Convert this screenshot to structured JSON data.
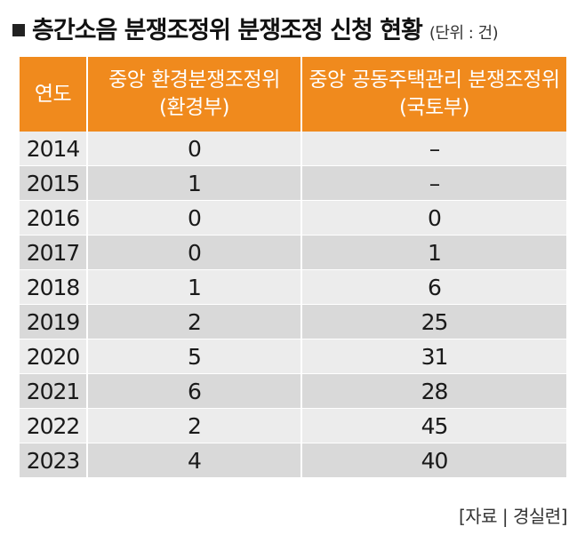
{
  "title": "층간소음 분쟁조정위 분쟁조정 신청 현황",
  "unit": "(단위 : 건)",
  "source": "[자료 | 경실련]",
  "colors": {
    "header_bg": "#f08a1d",
    "header_text": "#ffffff",
    "row_light": "#ececec",
    "row_dark": "#d9d9d9"
  },
  "headers": {
    "year": "연도",
    "env_line1": "중앙 환경분쟁조정위",
    "env_line2": "(환경부)",
    "housing_line1": "중앙 공동주택관리 분쟁조정위",
    "housing_line2": "(국토부)"
  },
  "rows": [
    {
      "year": "2014",
      "env": "0",
      "housing": "–"
    },
    {
      "year": "2015",
      "env": "1",
      "housing": "–"
    },
    {
      "year": "2016",
      "env": "0",
      "housing": "0"
    },
    {
      "year": "2017",
      "env": "0",
      "housing": "1"
    },
    {
      "year": "2018",
      "env": "1",
      "housing": "6"
    },
    {
      "year": "2019",
      "env": "2",
      "housing": "25"
    },
    {
      "year": "2020",
      "env": "5",
      "housing": "31"
    },
    {
      "year": "2021",
      "env": "6",
      "housing": "28"
    },
    {
      "year": "2022",
      "env": "2",
      "housing": "45"
    },
    {
      "year": "2023",
      "env": "4",
      "housing": "40"
    }
  ],
  "chart_data": {
    "type": "table",
    "title": "층간소음 분쟁조정위 분쟁조정 신청 현황",
    "unit": "(단위 : 건)",
    "columns": [
      "연도",
      "중앙 환경분쟁조정위 (환경부)",
      "중앙 공동주택관리 분쟁조정위 (국토부)"
    ],
    "categories": [
      "2014",
      "2015",
      "2016",
      "2017",
      "2018",
      "2019",
      "2020",
      "2021",
      "2022",
      "2023"
    ],
    "series": [
      {
        "name": "중앙 환경분쟁조정위 (환경부)",
        "values": [
          0,
          1,
          0,
          0,
          1,
          2,
          5,
          6,
          2,
          4
        ]
      },
      {
        "name": "중앙 공동주택관리 분쟁조정위 (국토부)",
        "values": [
          null,
          null,
          0,
          1,
          6,
          25,
          31,
          28,
          45,
          40
        ]
      }
    ],
    "source": "[자료 | 경실련]"
  }
}
